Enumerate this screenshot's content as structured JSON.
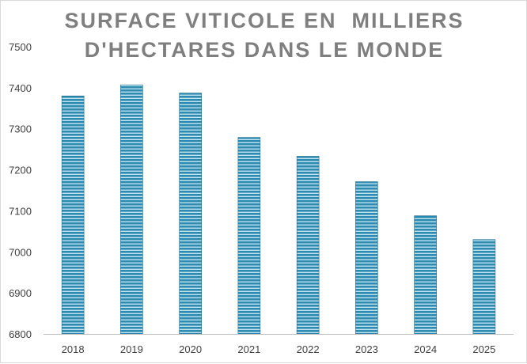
{
  "chart_data": {
    "type": "bar",
    "title_lines": [
      "SURFACE VITICOLE EN  MILLIERS",
      "D'HECTARES DANS LE MONDE"
    ],
    "categories": [
      "2018",
      "2019",
      "2020",
      "2021",
      "2022",
      "2023",
      "2024",
      "2025"
    ],
    "values": [
      7380,
      7407,
      7387,
      7279,
      7233,
      7171,
      7088,
      7030
    ],
    "ylim": [
      6800,
      7500
    ],
    "yticks": [
      "6800",
      "6900",
      "7000",
      "7100",
      "7200",
      "7300",
      "7400",
      "7500"
    ],
    "grid": false,
    "bar_color": "#2e8bb0",
    "bar_stripe_color": "#bfe3f0"
  }
}
